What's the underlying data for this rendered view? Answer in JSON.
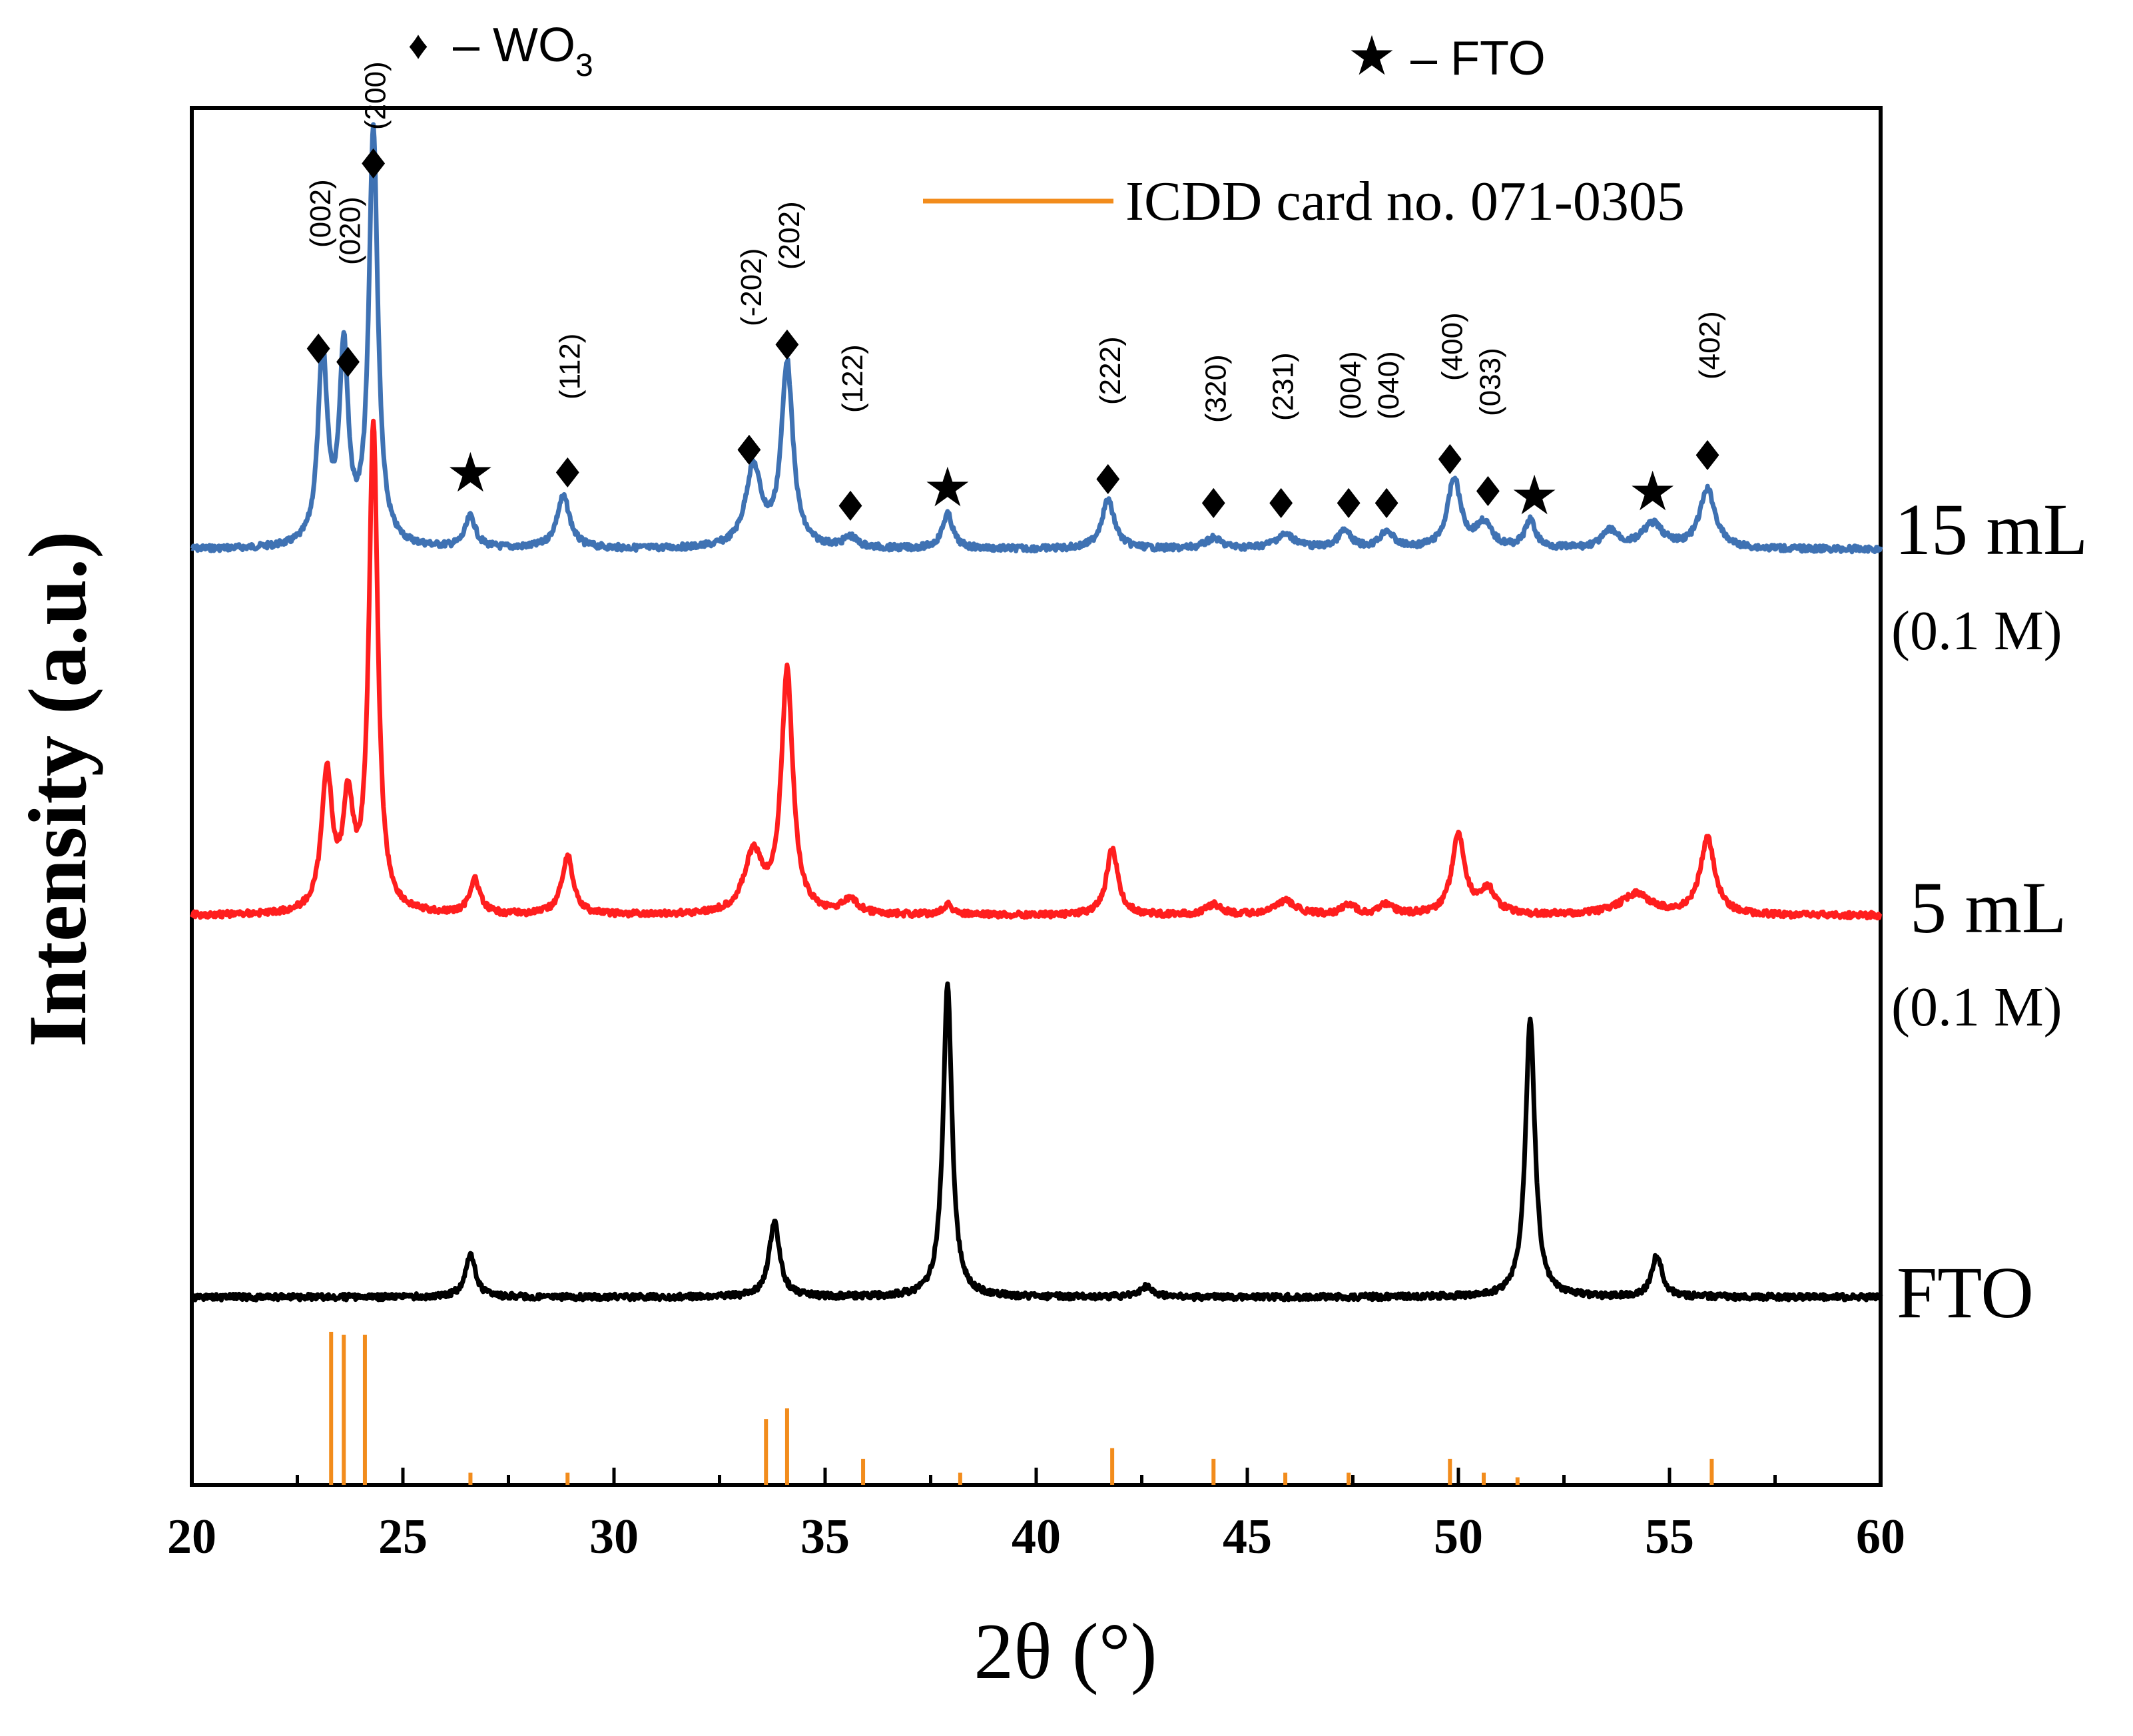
{
  "chart_data": {
    "type": "line",
    "xlabel": "2θ (°)",
    "ylabel": "Intensity (a.u.)",
    "xlim": [
      20,
      60
    ],
    "x_ticks": [
      20,
      25,
      30,
      35,
      40,
      45,
      50,
      55,
      60
    ],
    "symbol_legend": {
      "wo3": {
        "symbol": "♦",
        "label": "– WO",
        "sub": "3"
      },
      "fto": {
        "symbol": "★",
        "label": "– FTO"
      }
    },
    "reference_legend": {
      "label": "ICDD card no. 071-0305",
      "color": "#f28c1c"
    },
    "series": [
      {
        "name": "15 mL",
        "sub": "(0.1 M)",
        "color": "#3f72b3",
        "baseline": 0.0,
        "peaks": [
          [
            23.1,
            0.55,
            0.18
          ],
          [
            23.6,
            0.55,
            0.17
          ],
          [
            24.3,
            1.2,
            0.17
          ],
          [
            26.6,
            0.09,
            0.2
          ],
          [
            28.8,
            0.15,
            0.25
          ],
          [
            33.3,
            0.23,
            0.3
          ],
          [
            34.1,
            0.53,
            0.22
          ],
          [
            35.6,
            0.03,
            0.25
          ],
          [
            37.9,
            0.1,
            0.2
          ],
          [
            41.7,
            0.14,
            0.25
          ],
          [
            44.2,
            0.03,
            0.3
          ],
          [
            45.9,
            0.04,
            0.4
          ],
          [
            47.3,
            0.05,
            0.25
          ],
          [
            48.3,
            0.05,
            0.25
          ],
          [
            49.9,
            0.2,
            0.25
          ],
          [
            50.6,
            0.07,
            0.3
          ],
          [
            51.7,
            0.08,
            0.2
          ],
          [
            53.6,
            0.05,
            0.3
          ],
          [
            54.6,
            0.07,
            0.4
          ],
          [
            55.9,
            0.17,
            0.3
          ]
        ]
      },
      {
        "name": "5 mL",
        "sub": "(0.1 M)",
        "color": "#ff1e1e",
        "baseline": 0.0,
        "peaks": [
          [
            23.2,
            0.4,
            0.2
          ],
          [
            23.7,
            0.3,
            0.2
          ],
          [
            24.3,
            1.4,
            0.17
          ],
          [
            26.7,
            0.1,
            0.2
          ],
          [
            28.9,
            0.17,
            0.22
          ],
          [
            33.3,
            0.17,
            0.35
          ],
          [
            34.1,
            0.7,
            0.22
          ],
          [
            35.6,
            0.04,
            0.3
          ],
          [
            37.9,
            0.03,
            0.2
          ],
          [
            41.8,
            0.19,
            0.22
          ],
          [
            44.2,
            0.03,
            0.3
          ],
          [
            45.9,
            0.04,
            0.4
          ],
          [
            47.4,
            0.03,
            0.25
          ],
          [
            48.3,
            0.03,
            0.25
          ],
          [
            50.0,
            0.23,
            0.25
          ],
          [
            50.7,
            0.07,
            0.3
          ],
          [
            54.2,
            0.06,
            0.6
          ],
          [
            55.9,
            0.22,
            0.28
          ]
        ]
      },
      {
        "name": "FTO",
        "sub": "",
        "color": "#000000",
        "baseline": 0.0,
        "peaks": [
          [
            26.6,
            0.12,
            0.2
          ],
          [
            33.8,
            0.22,
            0.2
          ],
          [
            37.9,
            0.9,
            0.17
          ],
          [
            42.6,
            0.03,
            0.25
          ],
          [
            51.7,
            0.81,
            0.18
          ],
          [
            54.7,
            0.12,
            0.2
          ]
        ]
      }
    ],
    "reference_lines": [
      {
        "x": 23.3,
        "intensity": 100
      },
      {
        "x": 23.6,
        "intensity": 98
      },
      {
        "x": 24.1,
        "intensity": 98
      },
      {
        "x": 26.6,
        "intensity": 8
      },
      {
        "x": 28.9,
        "intensity": 8
      },
      {
        "x": 33.6,
        "intensity": 43
      },
      {
        "x": 34.1,
        "intensity": 50
      },
      {
        "x": 35.9,
        "intensity": 17
      },
      {
        "x": 38.2,
        "intensity": 8
      },
      {
        "x": 41.8,
        "intensity": 24
      },
      {
        "x": 44.2,
        "intensity": 17
      },
      {
        "x": 45.9,
        "intensity": 8
      },
      {
        "x": 47.4,
        "intensity": 8
      },
      {
        "x": 49.8,
        "intensity": 17
      },
      {
        "x": 50.6,
        "intensity": 8
      },
      {
        "x": 51.4,
        "intensity": 5
      },
      {
        "x": 56.0,
        "intensity": 17
      }
    ],
    "peak_labels": [
      {
        "x": 23.0,
        "text": "(002)",
        "marker": "diamond"
      },
      {
        "x": 23.7,
        "text": "(020)",
        "marker": "diamond"
      },
      {
        "x": 24.3,
        "text": "(200)",
        "marker": "diamond"
      },
      {
        "x": 26.6,
        "text": "",
        "marker": "star"
      },
      {
        "x": 28.9,
        "text": "(112)",
        "marker": "diamond"
      },
      {
        "x": 33.2,
        "text": "(-202)",
        "marker": "diamond"
      },
      {
        "x": 34.1,
        "text": "(202)",
        "marker": "diamond"
      },
      {
        "x": 35.6,
        "text": "(122)",
        "marker": "diamond"
      },
      {
        "x": 37.9,
        "text": "",
        "marker": "star"
      },
      {
        "x": 41.7,
        "text": "(222)",
        "marker": "diamond"
      },
      {
        "x": 44.2,
        "text": "(320)",
        "marker": "diamond"
      },
      {
        "x": 45.8,
        "text": "(231)",
        "marker": "diamond"
      },
      {
        "x": 47.4,
        "text": "(004)",
        "marker": "diamond"
      },
      {
        "x": 48.3,
        "text": "(040)",
        "marker": "diamond"
      },
      {
        "x": 49.8,
        "text": "(400)",
        "marker": "diamond"
      },
      {
        "x": 50.7,
        "text": "(033)",
        "marker": "diamond"
      },
      {
        "x": 51.8,
        "text": "",
        "marker": "star"
      },
      {
        "x": 54.6,
        "text": "",
        "marker": "star"
      },
      {
        "x": 55.9,
        "text": "(402)",
        "marker": "diamond"
      }
    ]
  }
}
